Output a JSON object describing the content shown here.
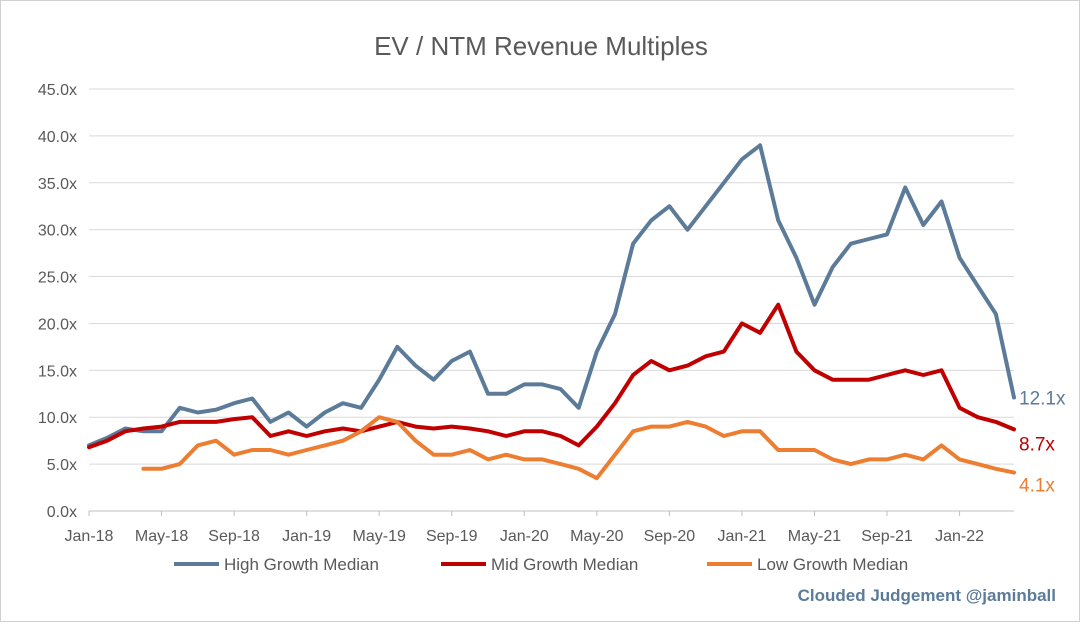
{
  "chart_data": {
    "type": "line",
    "title": "EV / NTM Revenue Multiples",
    "y_ticks": [
      "0.0x",
      "5.0x",
      "10.0x",
      "15.0x",
      "20.0x",
      "25.0x",
      "30.0x",
      "35.0x",
      "40.0x",
      "45.0x"
    ],
    "ylim": [
      0,
      45
    ],
    "x_ticks": [
      "Jan-18",
      "May-18",
      "Sep-18",
      "Jan-19",
      "May-19",
      "Sep-19",
      "Jan-20",
      "May-20",
      "Sep-20",
      "Jan-21",
      "May-21",
      "Sep-21",
      "Jan-22"
    ],
    "xlim": [
      "2018-01",
      "2022-04"
    ],
    "grid": true,
    "legend_position": "bottom",
    "x": [
      "2018-01",
      "2018-02",
      "2018-03",
      "2018-04",
      "2018-05",
      "2018-06",
      "2018-07",
      "2018-08",
      "2018-09",
      "2018-10",
      "2018-11",
      "2018-12",
      "2019-01",
      "2019-02",
      "2019-03",
      "2019-04",
      "2019-05",
      "2019-06",
      "2019-07",
      "2019-08",
      "2019-09",
      "2019-10",
      "2019-11",
      "2019-12",
      "2020-01",
      "2020-02",
      "2020-03",
      "2020-04",
      "2020-05",
      "2020-06",
      "2020-07",
      "2020-08",
      "2020-09",
      "2020-10",
      "2020-11",
      "2020-12",
      "2021-01",
      "2021-02",
      "2021-03",
      "2021-04",
      "2021-05",
      "2021-06",
      "2021-07",
      "2021-08",
      "2021-09",
      "2021-10",
      "2021-11",
      "2021-12",
      "2022-01",
      "2022-02",
      "2022-03",
      "2022-04"
    ],
    "series": [
      {
        "name": "High Growth Median",
        "color": "#5b7b99",
        "end_label": "12.1x",
        "values": [
          7.0,
          7.8,
          8.8,
          8.5,
          8.5,
          11.0,
          10.5,
          10.8,
          11.5,
          12.0,
          9.5,
          10.5,
          9.0,
          10.5,
          11.5,
          11.0,
          14.0,
          17.5,
          15.5,
          14.0,
          16.0,
          17.0,
          12.5,
          12.5,
          13.5,
          13.5,
          13.0,
          11.0,
          17.0,
          21.0,
          28.5,
          31.0,
          32.5,
          30.0,
          32.5,
          35.0,
          37.5,
          39.0,
          31.0,
          27.0,
          22.0,
          26.0,
          28.5,
          29.0,
          29.5,
          34.5,
          30.5,
          33.0,
          27.0,
          24.0,
          21.0,
          12.1
        ]
      },
      {
        "name": "Mid Growth Median",
        "color": "#c00000",
        "end_label": "8.7x",
        "values": [
          6.8,
          7.5,
          8.5,
          8.8,
          9.0,
          9.5,
          9.5,
          9.5,
          9.8,
          10.0,
          8.0,
          8.5,
          8.0,
          8.5,
          8.8,
          8.5,
          9.0,
          9.5,
          9.0,
          8.8,
          9.0,
          8.8,
          8.5,
          8.0,
          8.5,
          8.5,
          8.0,
          7.0,
          9.0,
          11.5,
          14.5,
          16.0,
          15.0,
          15.5,
          16.5,
          17.0,
          20.0,
          19.0,
          22.0,
          17.0,
          15.0,
          14.0,
          14.0,
          14.0,
          14.5,
          15.0,
          14.5,
          15.0,
          11.0,
          10.0,
          9.5,
          8.7
        ]
      },
      {
        "name": "Low Growth Median",
        "color": "#ed7d31",
        "end_label": "4.1x",
        "values": [
          null,
          null,
          null,
          4.5,
          4.5,
          5.0,
          7.0,
          7.5,
          6.0,
          6.5,
          6.5,
          6.0,
          6.5,
          7.0,
          7.5,
          8.5,
          10.0,
          9.5,
          7.5,
          6.0,
          6.0,
          6.5,
          5.5,
          6.0,
          5.5,
          5.5,
          5.0,
          4.5,
          3.5,
          6.0,
          8.5,
          9.0,
          9.0,
          9.5,
          9.0,
          8.0,
          8.5,
          8.5,
          6.5,
          6.5,
          6.5,
          5.5,
          5.0,
          5.5,
          5.5,
          6.0,
          5.5,
          7.0,
          5.5,
          5.0,
          4.5,
          4.1
        ]
      }
    ]
  },
  "watermark": "Clouded Judgement @jaminball"
}
